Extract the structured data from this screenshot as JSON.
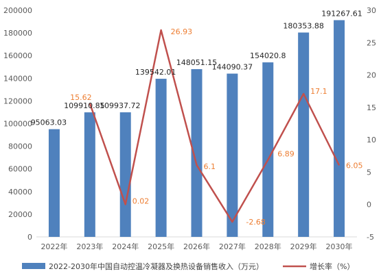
{
  "chart_data": {
    "type": "bar",
    "categories": [
      "2022年",
      "2023年",
      "2024年",
      "2025年",
      "2026年",
      "2027年",
      "2028年",
      "2029年",
      "2030年"
    ],
    "series": [
      {
        "name": "2022-2030年中国自动控温冷凝器及换热设备销售收入（万元）",
        "type": "bar",
        "axis": "left",
        "color": "#4F81BD",
        "values": [
          95063.03,
          109910.85,
          109937.72,
          139542.01,
          148051.15,
          144090.37,
          154020.8,
          180353.88,
          191267.61
        ],
        "labels": [
          "95063.03",
          "109910.85",
          "109937.72",
          "139542.01",
          "148051.15",
          "144090.37",
          "154020.8",
          "180353.88",
          "191267.61"
        ]
      },
      {
        "name": "增长率（%）",
        "type": "line",
        "axis": "right",
        "color": "#C0504D",
        "label_color": "#ED7D31",
        "values": [
          null,
          15.62,
          0.02,
          26.93,
          6.1,
          -2.68,
          6.89,
          17.1,
          6.05
        ],
        "labels": [
          "",
          "15.62",
          "0.02",
          "26.93",
          "6.1",
          "-2.68",
          "6.89",
          "17.1",
          "6.05"
        ]
      }
    ],
    "y_left": {
      "range": [
        0,
        200000
      ],
      "ticks": [
        "0",
        "20000",
        "40000",
        "60000",
        "80000",
        "100000",
        "120000",
        "140000",
        "160000",
        "180000",
        "200000"
      ]
    },
    "y_right": {
      "range": [
        -5,
        30
      ],
      "ticks": [
        "-5",
        "0",
        "5",
        "10",
        "15",
        "20",
        "25",
        "30"
      ]
    },
    "grid": false,
    "legend_position": "bottom"
  }
}
